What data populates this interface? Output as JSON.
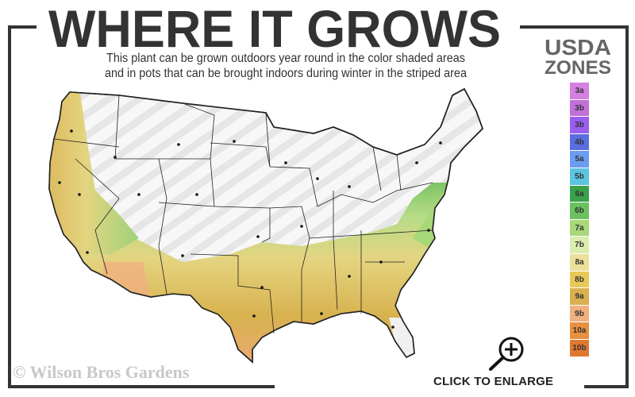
{
  "header": {
    "title": "WHERE IT GROWS",
    "subtitle_line1": "This plant can be grown outdoors year round in the color shaded areas",
    "subtitle_line2": "and in pots that can be brought indoors during winter in the striped area"
  },
  "legend": {
    "title_line1": "USDA",
    "title_line2": "ZONES",
    "zones": [
      {
        "label": "3a",
        "color": "#d57fe0"
      },
      {
        "label": "3b",
        "color": "#c070d8"
      },
      {
        "label": "3b",
        "color": "#9a5ef0"
      },
      {
        "label": "4b",
        "color": "#5a6ee0"
      },
      {
        "label": "5a",
        "color": "#6a9cf0"
      },
      {
        "label": "5b",
        "color": "#5bc4e0"
      },
      {
        "label": "6a",
        "color": "#3aa04a"
      },
      {
        "label": "6b",
        "color": "#6cc060"
      },
      {
        "label": "7a",
        "color": "#a8d878"
      },
      {
        "label": "7b",
        "color": "#dcecb0"
      },
      {
        "label": "8a",
        "color": "#ece09a"
      },
      {
        "label": "8b",
        "color": "#e8c858"
      },
      {
        "label": "9a",
        "color": "#d8b050"
      },
      {
        "label": "9b",
        "color": "#f0b080"
      },
      {
        "label": "10a",
        "color": "#e89040"
      },
      {
        "label": "10b",
        "color": "#e07830"
      }
    ]
  },
  "map": {
    "shaded_color_south": "#dcc060",
    "striped_color": "#f0f0f0"
  },
  "footer": {
    "watermark": "© Wilson Bros Gardens",
    "enlarge_label": "CLICK TO ENLARGE",
    "enlarge_icon": "zoom-in-icon"
  }
}
